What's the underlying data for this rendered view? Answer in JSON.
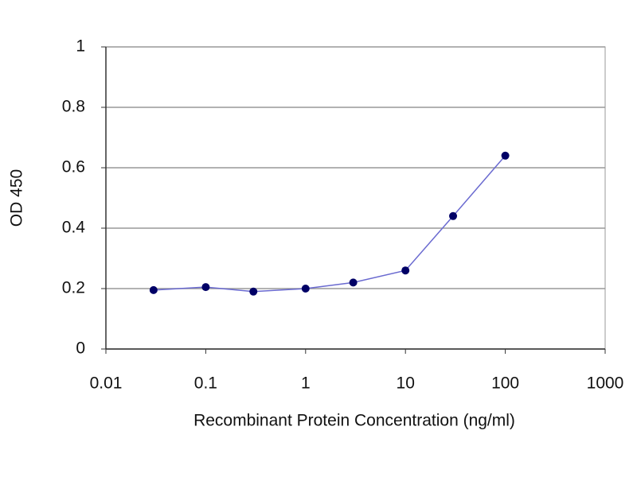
{
  "chart_data": {
    "type": "line",
    "x_label": "Recombinant Protein Concentration (ng/ml)",
    "y_label": "OD 450",
    "x": [
      0.03,
      0.1,
      0.3,
      1,
      3,
      10,
      30,
      100
    ],
    "values": [
      0.195,
      0.205,
      0.19,
      0.2,
      0.22,
      0.26,
      0.44,
      0.64
    ],
    "color": "#6a6ad0",
    "marker_color": "#000066",
    "xscale": "log",
    "xlim": [
      0.01,
      1000
    ],
    "xticks": [
      0.01,
      0.1,
      1,
      10,
      100,
      1000
    ],
    "ylim": [
      0,
      1
    ],
    "yticks": [
      0,
      0.2,
      0.4,
      0.6,
      0.8,
      1
    ],
    "grid": true
  }
}
